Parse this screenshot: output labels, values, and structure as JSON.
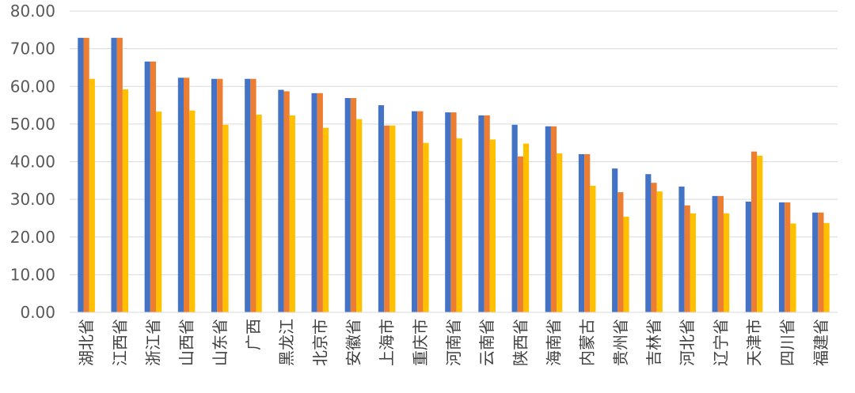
{
  "chart_data": {
    "type": "bar",
    "title": "",
    "xlabel": "",
    "ylabel": "",
    "ylim": [
      0,
      80
    ],
    "yticks": [
      "0.00",
      "10.00",
      "20.00",
      "30.00",
      "40.00",
      "50.00",
      "60.00",
      "70.00",
      "80.00"
    ],
    "grid": true,
    "legend": "none",
    "categories": [
      "湖北省",
      "江西省",
      "浙江省",
      "山西省",
      "山东省",
      "广西",
      "黑龙江",
      "北京市",
      "安徽省",
      "上海市",
      "重庆市",
      "河南省",
      "云南省",
      "陕西省",
      "海南省",
      "内蒙古",
      "贵州省",
      "吉林省",
      "河北省",
      "辽宁省",
      "天津市",
      "四川省",
      "福建省"
    ],
    "series": [
      {
        "color": "#4472C4",
        "values": [
          72.9,
          72.9,
          66.6,
          62.3,
          62.0,
          62.0,
          59.1,
          58.2,
          56.9,
          55.0,
          53.4,
          53.1,
          52.3,
          49.8,
          49.4,
          42.0,
          38.2,
          36.7,
          33.4,
          30.9,
          29.4,
          29.2,
          26.5
        ]
      },
      {
        "color": "#ED7D31",
        "values": [
          72.9,
          72.9,
          66.6,
          62.3,
          62.0,
          62.0,
          58.7,
          58.2,
          56.9,
          49.6,
          53.4,
          53.1,
          52.3,
          41.4,
          49.4,
          42.0,
          31.9,
          34.4,
          28.4,
          30.9,
          42.7,
          29.2,
          26.5
        ]
      },
      {
        "color": "#FFC000",
        "values": [
          62.0,
          59.2,
          53.3,
          53.6,
          49.8,
          52.5,
          52.3,
          49.0,
          51.3,
          49.6,
          45.0,
          46.2,
          45.9,
          44.8,
          42.2,
          33.6,
          25.4,
          32.1,
          26.3,
          26.3,
          41.6,
          23.6,
          23.7
        ]
      }
    ]
  }
}
